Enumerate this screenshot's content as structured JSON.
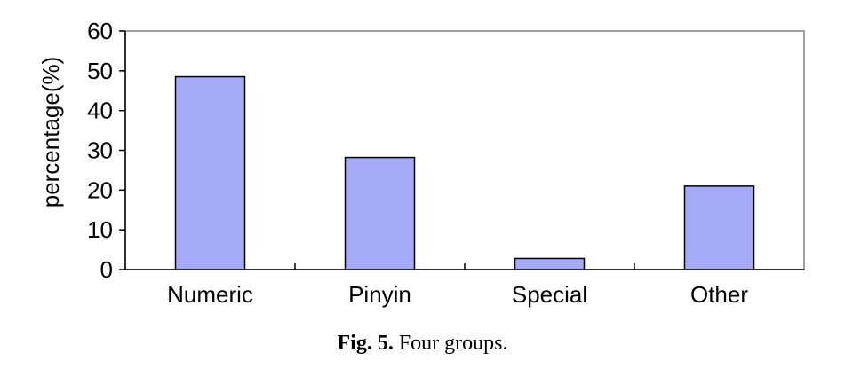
{
  "chart_data": {
    "type": "bar",
    "categories": [
      "Numeric",
      "Pinyin",
      "Special",
      "Other"
    ],
    "values": [
      48.5,
      28.2,
      2.8,
      21.0
    ],
    "title": "",
    "xlabel": "",
    "ylabel": "percentage(%)",
    "ylim": [
      0,
      60
    ],
    "yticks": [
      0,
      10,
      20,
      30,
      40,
      50,
      60
    ],
    "grid": false,
    "legend": "none",
    "bar_color": "#a5aaf7",
    "bar_edge_color": "#000000"
  },
  "caption": {
    "label": "Fig. 5.",
    "text": "Four groups."
  }
}
